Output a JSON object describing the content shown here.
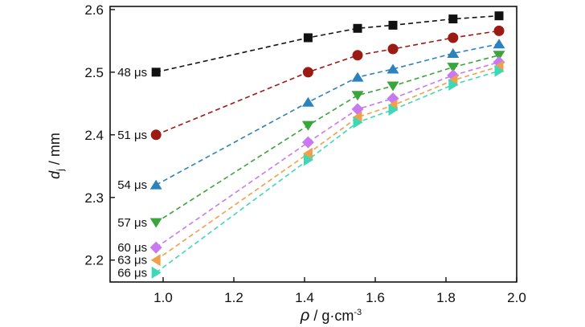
{
  "chart_data": {
    "type": "line",
    "title": "",
    "xlabel": {
      "symbol": "ρ",
      "sep": " / ",
      "unit": "g·cm",
      "exp": "-3"
    },
    "ylabel": {
      "symbol": "d",
      "sub": "j",
      "sep": " / ",
      "unit": "mm"
    },
    "xlim": [
      0.85,
      2.0
    ],
    "ylim": [
      2.165,
      2.605
    ],
    "x_ticks": [
      1.0,
      1.2,
      1.4,
      1.6,
      1.8,
      2.0
    ],
    "x_tick_labels": [
      "1.0",
      "1.2",
      "1.4",
      "1.6",
      "1.8",
      "2.0"
    ],
    "y_ticks": [
      2.2,
      2.3,
      2.4,
      2.5,
      2.6
    ],
    "y_tick_labels": [
      "2.2",
      "2.3",
      "2.4",
      "2.5",
      "2.6"
    ],
    "grid": false,
    "x": [
      0.98,
      1.41,
      1.55,
      1.65,
      1.82,
      1.95
    ],
    "series": [
      {
        "name": "48 μs",
        "marker": "square",
        "color": "#111111",
        "values": [
          2.5,
          2.555,
          2.57,
          2.575,
          2.585,
          2.59
        ]
      },
      {
        "name": "51 μs",
        "marker": "circle",
        "color": "#9b1b14",
        "values": [
          2.4,
          2.5,
          2.527,
          2.537,
          2.555,
          2.566
        ]
      },
      {
        "name": "54 μs",
        "marker": "triangle-up",
        "color": "#2b82bd",
        "values": [
          2.32,
          2.452,
          2.492,
          2.505,
          2.53,
          2.545
        ]
      },
      {
        "name": "57 μs",
        "marker": "triangle-down",
        "color": "#3aa53a",
        "values": [
          2.26,
          2.415,
          2.463,
          2.478,
          2.508,
          2.527
        ]
      },
      {
        "name": "60 μs",
        "marker": "diamond",
        "color": "#c879f0",
        "values": [
          2.22,
          2.388,
          2.441,
          2.458,
          2.495,
          2.516
        ]
      },
      {
        "name": "63 μs",
        "marker": "triangle-left",
        "color": "#f0a04a",
        "values": [
          2.2,
          2.37,
          2.428,
          2.447,
          2.487,
          2.509
        ]
      },
      {
        "name": "66 μs",
        "marker": "triangle-right",
        "color": "#3ed8b8",
        "values": [
          2.18,
          2.36,
          2.42,
          2.44,
          2.48,
          2.502
        ]
      }
    ]
  }
}
